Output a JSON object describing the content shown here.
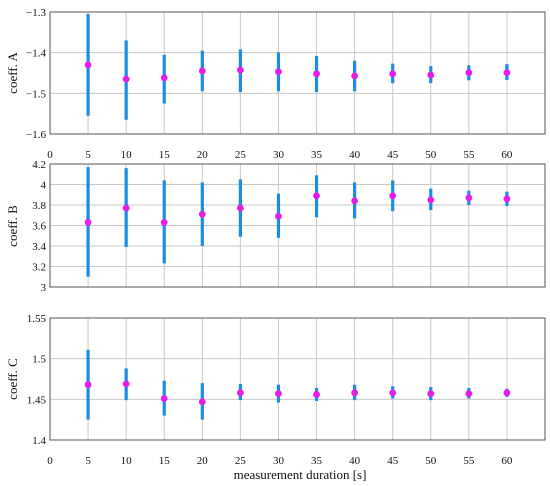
{
  "chart_data": [
    {
      "type": "scatter",
      "xlabel": "",
      "ylabel": "coeff. A",
      "x": [
        5,
        10,
        15,
        20,
        25,
        30,
        35,
        40,
        45,
        50,
        55,
        60
      ],
      "y": [
        -1.43,
        -1.465,
        -1.462,
        -1.445,
        -1.443,
        -1.447,
        -1.452,
        -1.457,
        -1.452,
        -1.455,
        -1.449,
        -1.449
      ],
      "ylow": [
        -1.555,
        -1.565,
        -1.525,
        -1.495,
        -1.497,
        -1.495,
        -1.497,
        -1.495,
        -1.475,
        -1.475,
        -1.468,
        -1.467
      ],
      "yhigh": [
        -1.305,
        -1.37,
        -1.405,
        -1.395,
        -1.392,
        -1.399,
        -1.408,
        -1.42,
        -1.427,
        -1.433,
        -1.431,
        -1.428
      ],
      "xlim": [
        0,
        65
      ],
      "ylim": [
        -1.6,
        -1.3
      ],
      "xticks": [
        "0",
        "5",
        "10",
        "15",
        "20",
        "25",
        "30",
        "35",
        "40",
        "45",
        "50",
        "55",
        "60"
      ],
      "yticks": [
        "−1.3",
        "−1.4",
        "−1.5",
        "−1.6"
      ],
      "grid": true
    },
    {
      "type": "scatter",
      "xlabel": "",
      "ylabel": "coeff. B",
      "x": [
        5,
        10,
        15,
        20,
        25,
        30,
        35,
        40,
        45,
        50,
        55,
        60
      ],
      "y": [
        3.63,
        3.77,
        3.63,
        3.71,
        3.77,
        3.69,
        3.89,
        3.84,
        3.89,
        3.85,
        3.87,
        3.86
      ],
      "ylow": [
        3.1,
        3.39,
        3.23,
        3.4,
        3.49,
        3.48,
        3.68,
        3.67,
        3.74,
        3.75,
        3.8,
        3.79
      ],
      "yhigh": [
        4.17,
        4.16,
        4.04,
        4.02,
        4.05,
        3.91,
        4.09,
        4.02,
        4.04,
        3.96,
        3.94,
        3.93
      ],
      "xlim": [
        0,
        65
      ],
      "ylim": [
        3,
        4.2
      ],
      "xticks": [
        "0",
        "5",
        "10",
        "15",
        "20",
        "25",
        "30",
        "35",
        "40",
        "45",
        "50",
        "55",
        "60"
      ],
      "yticks": [
        "4.2",
        "4",
        "3.8",
        "3.6",
        "3.4",
        "3.2",
        "3"
      ],
      "grid": true
    },
    {
      "type": "scatter",
      "xlabel": "measurement duration [s]",
      "ylabel": "coeff. C",
      "x": [
        5,
        10,
        15,
        20,
        25,
        30,
        35,
        40,
        45,
        50,
        55,
        60
      ],
      "y": [
        1.468,
        1.469,
        1.451,
        1.447,
        1.458,
        1.457,
        1.456,
        1.458,
        1.458,
        1.457,
        1.457,
        1.458
      ],
      "ylow": [
        1.425,
        1.449,
        1.43,
        1.425,
        1.449,
        1.446,
        1.448,
        1.449,
        1.451,
        1.449,
        1.451,
        1.453
      ],
      "yhigh": [
        1.511,
        1.488,
        1.473,
        1.47,
        1.469,
        1.468,
        1.464,
        1.468,
        1.466,
        1.465,
        1.464,
        1.463
      ],
      "xlim": [
        0,
        65
      ],
      "ylim": [
        1.4,
        1.55
      ],
      "xticks": [
        "0",
        "5",
        "10",
        "15",
        "20",
        "25",
        "30",
        "35",
        "40",
        "45",
        "50",
        "55",
        "60"
      ],
      "yticks": [
        "1.55",
        "1.5",
        "1.45",
        "1.4"
      ],
      "grid": true
    }
  ],
  "colors": {
    "errorbar": "#1c8be3",
    "marker": "#e81ce8",
    "grid": "#c8c8c8"
  }
}
